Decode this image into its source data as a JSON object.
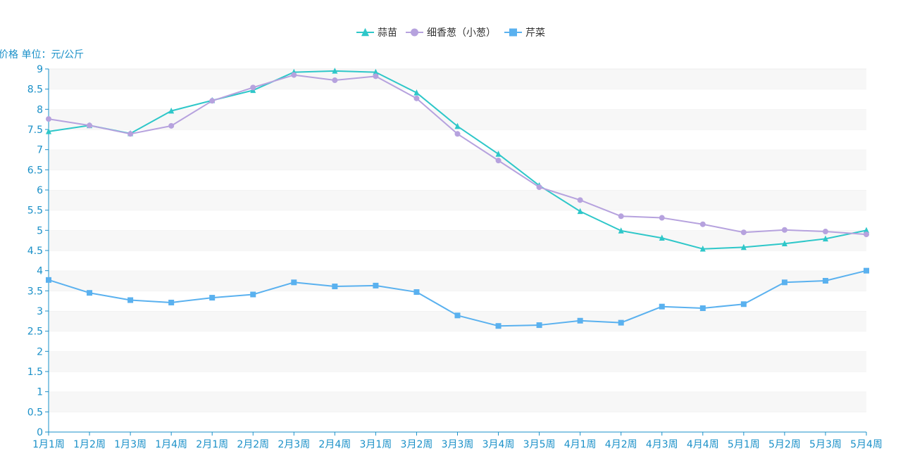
{
  "chart_data": {
    "type": "line",
    "ylabel": "价格 单位：元/公斤",
    "ylim": [
      0,
      9
    ],
    "ytick_step": 0.5,
    "categories": [
      "1月1周",
      "1月2周",
      "1月3周",
      "1月4周",
      "2月1周",
      "2月2周",
      "2月3周",
      "2月4周",
      "3月1周",
      "3月2周",
      "3月3周",
      "3月4周",
      "3月5周",
      "4月1周",
      "4月2周",
      "4月3周",
      "4月4周",
      "5月1周",
      "5月2周",
      "5月3周",
      "5月4周"
    ],
    "legend_position": "top-center",
    "grid": "horizontal-bands",
    "series": [
      {
        "name": "蒜苗",
        "color": "#2ec7c9",
        "marker": "triangle",
        "values": [
          7.45,
          7.6,
          7.4,
          7.96,
          8.22,
          8.47,
          8.92,
          8.95,
          8.92,
          8.41,
          7.58,
          6.89,
          6.11,
          5.47,
          4.99,
          4.81,
          4.54,
          4.58,
          4.67,
          4.79,
          5.0
        ]
      },
      {
        "name": "细香葱（小葱）",
        "color": "#b6a2de",
        "marker": "circle",
        "values": [
          7.76,
          7.6,
          7.39,
          7.59,
          8.21,
          8.54,
          8.85,
          8.72,
          8.82,
          8.27,
          7.39,
          6.73,
          6.07,
          5.75,
          5.35,
          5.31,
          5.15,
          4.95,
          5.01,
          4.97,
          4.9
        ]
      },
      {
        "name": "芹菜",
        "color": "#5ab1ef",
        "marker": "square",
        "values": [
          3.77,
          3.45,
          3.27,
          3.21,
          3.33,
          3.41,
          3.71,
          3.61,
          3.63,
          3.47,
          2.89,
          2.63,
          2.65,
          2.76,
          2.71,
          3.11,
          3.07,
          3.17,
          3.71,
          3.75,
          4.0
        ]
      }
    ]
  }
}
